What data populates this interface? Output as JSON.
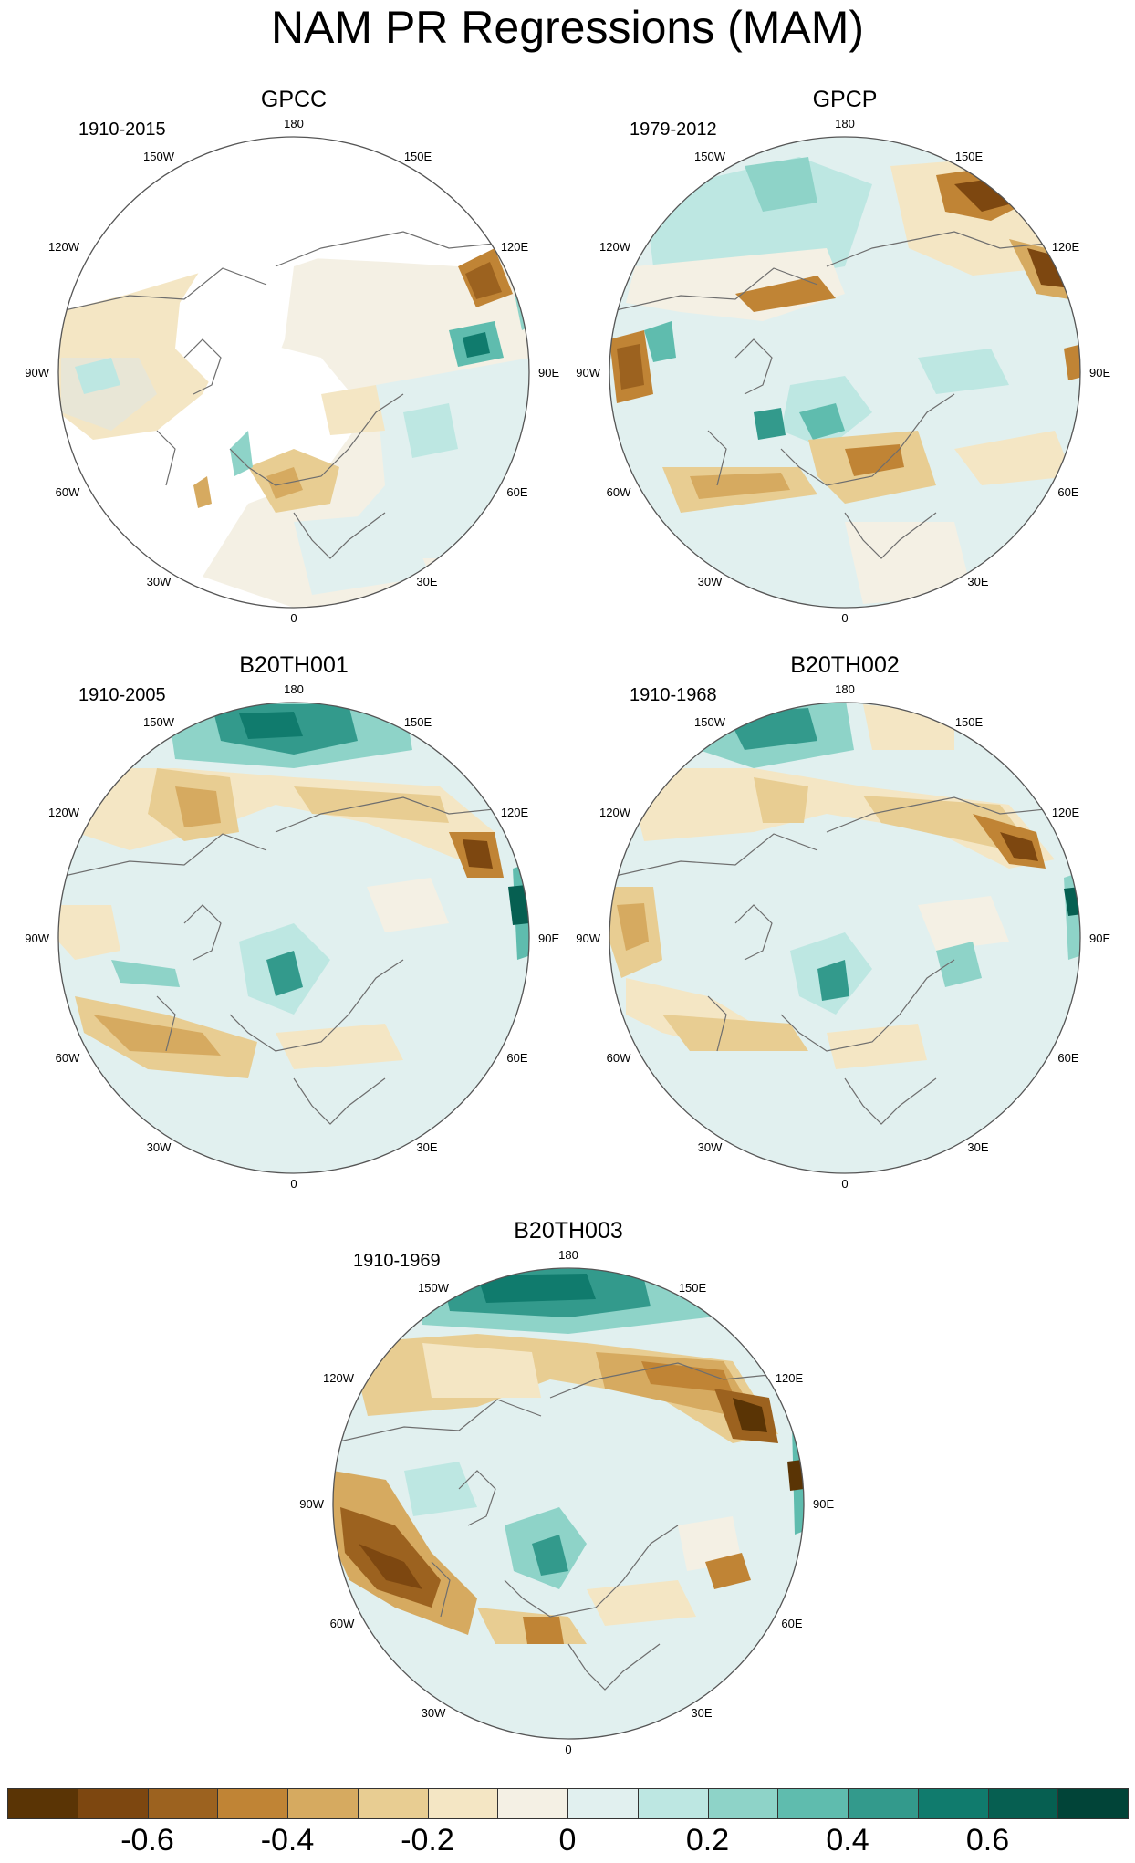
{
  "title": "NAM PR Regressions (MAM)",
  "colors": {
    "land_outline": "#6e6e6e",
    "missing": "#ffffff",
    "circle_outline": "#555555"
  },
  "longitude_labels": [
    "180",
    "150E",
    "120E",
    "90E",
    "60E",
    "30E",
    "0",
    "30W",
    "60W",
    "90W",
    "120W",
    "150W"
  ],
  "panels": [
    {
      "id": "gpcc",
      "title": "GPCC",
      "period": "1910-2015"
    },
    {
      "id": "gpcp",
      "title": "GPCP",
      "period": "1979-2012"
    },
    {
      "id": "b20th001",
      "title": "B20TH001",
      "period": "1910-2005"
    },
    {
      "id": "b20th002",
      "title": "B20TH002",
      "period": "1910-1968"
    },
    {
      "id": "b20th003",
      "title": "B20TH003",
      "period": "1910-1969"
    }
  ],
  "colorbar": {
    "colors": [
      "#5a3405",
      "#7d4710",
      "#9c621f",
      "#c08435",
      "#d6aa60",
      "#e8cd92",
      "#f4e6c4",
      "#f4f0e4",
      "#e1f0ef",
      "#bde7e2",
      "#8ed3c8",
      "#5fbcae",
      "#339a8c",
      "#107b6d",
      "#065f51",
      "#014438"
    ],
    "tick_labels": [
      "-0.6",
      "-0.4",
      "-0.2",
      "0",
      "0.2",
      "0.4",
      "0.6"
    ]
  }
}
